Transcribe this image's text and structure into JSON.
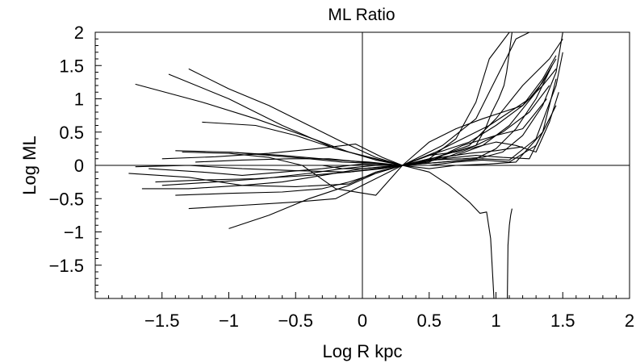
{
  "chart_data": {
    "type": "line",
    "title": "ML Ratio",
    "xlabel": "Log R kpc",
    "ylabel": "Log ML",
    "xlim": [
      -2.0,
      2.0
    ],
    "ylim": [
      -2.0,
      2.0
    ],
    "x_ticks": [
      -1.5,
      -1,
      -0.5,
      0,
      0.5,
      1,
      1.5,
      2
    ],
    "x_tick_labels": [
      "−1.5",
      "−1",
      "−0.5",
      "0",
      "0.5",
      "1",
      "1.5",
      "2"
    ],
    "y_ticks": [
      -1.5,
      -1,
      -0.5,
      0,
      0.5,
      1,
      1.5,
      2
    ],
    "y_tick_labels": [
      "−1.5",
      "−1",
      "−0.5",
      "0",
      "0.5",
      "1",
      "1.5",
      "2"
    ],
    "reference_lines": {
      "x": 0,
      "y": 0
    },
    "grid": false,
    "line_color": "#000000",
    "series": [
      {
        "x": [
          -1.7,
          -1.2,
          -0.8,
          -0.4,
          -0.1,
          0.1,
          0.3,
          0.5,
          0.8,
          1.0,
          1.2,
          1.35,
          1.45
        ],
        "y": [
          1.22,
          0.95,
          0.7,
          0.42,
          0.2,
          0.08,
          0.0,
          0.15,
          0.35,
          0.6,
          0.9,
          1.3,
          1.65
        ]
      },
      {
        "x": [
          -1.45,
          -1.0,
          -0.6,
          -0.2,
          0.1,
          0.3,
          0.5,
          0.7,
          0.85,
          0.95,
          1.1,
          1.25,
          1.4
        ],
        "y": [
          1.37,
          1.0,
          0.6,
          0.25,
          0.1,
          0.0,
          0.1,
          0.4,
          0.95,
          1.6,
          2.0,
          2.0,
          2.0
        ]
      },
      {
        "x": [
          -1.3,
          -1.0,
          -0.7,
          -0.4,
          -0.15,
          0.1,
          0.3,
          0.55,
          0.8,
          1.0,
          1.2,
          1.4,
          1.5
        ],
        "y": [
          1.45,
          1.15,
          0.9,
          0.6,
          0.35,
          0.12,
          0.0,
          0.12,
          0.3,
          0.7,
          1.2,
          1.6,
          1.9
        ]
      },
      {
        "x": [
          -1.6,
          -1.2,
          -0.9,
          -0.6,
          -0.3,
          0.0,
          0.3,
          0.6,
          0.85,
          0.95,
          1.05,
          1.15,
          1.25
        ],
        "y": [
          -0.05,
          -0.1,
          -0.15,
          -0.1,
          -0.05,
          0.02,
          0.0,
          0.3,
          0.7,
          1.1,
          1.5,
          1.9,
          2.0
        ]
      },
      {
        "x": [
          -1.35,
          -1.0,
          -0.7,
          -0.45,
          -0.2,
          0.1,
          0.3,
          0.5,
          0.7,
          0.85,
          0.92,
          0.97,
          1.02,
          1.06,
          1.08,
          1.1,
          1.12
        ],
        "y": [
          0.2,
          0.18,
          0.12,
          0.0,
          -0.35,
          -0.45,
          0.0,
          0.15,
          0.2,
          0.3,
          0.55,
          0.8,
          1.0,
          1.2,
          1.4,
          1.7,
          2.0
        ]
      },
      {
        "x": [
          -1.3,
          -0.9,
          -0.5,
          -0.2,
          0.0,
          0.3,
          0.5,
          0.7,
          0.9,
          1.1,
          1.3,
          1.45
        ],
        "y": [
          -0.65,
          -0.6,
          -0.55,
          -0.5,
          -0.3,
          0.0,
          0.1,
          0.15,
          0.3,
          0.6,
          1.1,
          1.6
        ]
      },
      {
        "x": [
          -1.0,
          -0.7,
          -0.4,
          -0.1,
          0.1,
          0.3,
          0.5,
          0.75,
          0.9,
          1.05,
          1.2,
          1.35,
          1.45,
          1.5
        ],
        "y": [
          -0.95,
          -0.75,
          -0.5,
          -0.3,
          -0.12,
          0.0,
          0.08,
          0.1,
          0.12,
          0.2,
          0.45,
          0.9,
          1.4,
          2.0
        ]
      },
      {
        "x": [
          -1.75,
          -1.3,
          -0.9,
          -0.5,
          -0.1,
          0.1,
          0.3,
          0.6,
          0.85,
          1.05,
          1.25,
          1.4
        ],
        "y": [
          -0.12,
          -0.18,
          -0.3,
          -0.32,
          -0.28,
          -0.1,
          0.0,
          0.1,
          0.15,
          0.12,
          0.1,
          0.7
        ]
      },
      {
        "x": [
          -1.65,
          -1.3,
          -0.9,
          -0.6,
          -0.3,
          0.0,
          0.3,
          0.6,
          0.9,
          1.1,
          1.3,
          1.45,
          1.5
        ],
        "y": [
          -0.35,
          -0.35,
          -0.3,
          -0.25,
          -0.15,
          -0.05,
          0.0,
          0.05,
          0.1,
          0.08,
          0.4,
          1.2,
          1.7
        ]
      },
      {
        "x": [
          -1.7,
          -1.3,
          -0.9,
          -0.5,
          -0.1,
          0.1,
          0.3,
          0.6,
          0.85,
          1.0,
          1.15,
          1.3,
          1.42
        ],
        "y": [
          -0.02,
          0.0,
          -0.05,
          -0.08,
          -0.1,
          -0.05,
          0.0,
          0.05,
          0.1,
          0.25,
          0.55,
          1.0,
          1.5
        ]
      },
      {
        "x": [
          -1.4,
          -1.0,
          -0.6,
          -0.2,
          0.05,
          0.3,
          0.55,
          0.8,
          0.95,
          1.1,
          1.25,
          1.35,
          1.42
        ],
        "y": [
          0.22,
          0.2,
          0.15,
          0.08,
          0.05,
          0.0,
          0.2,
          0.45,
          0.6,
          0.8,
          1.0,
          1.25,
          1.5
        ]
      },
      {
        "x": [
          -1.25,
          -0.9,
          -0.55,
          -0.25,
          0.0,
          0.3,
          0.6,
          0.8,
          1.0,
          1.15,
          1.3,
          1.4,
          1.47
        ],
        "y": [
          0.05,
          0.08,
          0.1,
          0.1,
          0.05,
          0.0,
          0.1,
          0.25,
          0.35,
          0.3,
          0.2,
          0.65,
          1.1
        ]
      },
      {
        "x": [
          -1.5,
          -1.1,
          -0.7,
          -0.35,
          -0.05,
          0.15,
          0.3,
          0.5,
          0.75,
          1.0,
          1.2,
          1.38
        ],
        "y": [
          0.1,
          0.13,
          0.18,
          0.25,
          0.32,
          0.12,
          0.0,
          0.05,
          0.3,
          0.45,
          0.55,
          1.0
        ]
      },
      {
        "x": [
          -1.55,
          -1.2,
          -0.8,
          -0.4,
          -0.1,
          0.15,
          0.3,
          0.5,
          0.7,
          0.95,
          1.15,
          1.35,
          1.45
        ],
        "y": [
          -0.25,
          -0.22,
          -0.2,
          -0.15,
          -0.1,
          -0.05,
          0.0,
          -0.05,
          0.0,
          0.02,
          0.05,
          0.5,
          1.3
        ]
      },
      {
        "x": [
          -1.4,
          -1.0,
          -0.6,
          -0.3,
          -0.1,
          0.1,
          0.3,
          0.5,
          0.7,
          0.9,
          1.1,
          1.3,
          1.45
        ],
        "y": [
          -0.45,
          -0.42,
          -0.4,
          -0.35,
          -0.25,
          -0.12,
          0.0,
          0.0,
          0.05,
          0.08,
          0.05,
          0.3,
          0.9
        ]
      },
      {
        "x": [
          -1.2,
          -0.8,
          -0.5,
          -0.2,
          0.05,
          0.3,
          0.5,
          0.7,
          0.9,
          1.05,
          1.2,
          1.35,
          1.45
        ],
        "y": [
          0.65,
          0.6,
          0.45,
          0.25,
          0.12,
          0.0,
          0.35,
          0.55,
          0.7,
          0.8,
          0.9,
          1.2,
          1.45
        ]
      },
      {
        "x": [
          -1.0,
          -0.7,
          -0.4,
          -0.15,
          0.1,
          0.3,
          0.45,
          0.6,
          0.85,
          1.05,
          1.25,
          1.4
        ],
        "y": [
          0.2,
          0.15,
          0.1,
          0.05,
          0.03,
          0.0,
          0.05,
          0.15,
          0.3,
          0.5,
          0.8,
          1.2
        ]
      },
      {
        "x": [
          -1.5,
          -1.1,
          -0.75,
          -0.4,
          -0.15,
          0.1,
          0.3,
          0.5,
          0.65,
          0.8,
          0.88,
          0.93,
          0.96,
          0.985
        ],
        "y": [
          -0.3,
          -0.25,
          -0.2,
          -0.12,
          -0.05,
          0.0,
          0.0,
          -0.1,
          -0.3,
          -0.55,
          -0.72,
          -0.7,
          -1.1,
          -2.0
        ]
      },
      {
        "x": [
          1.085,
          1.09,
          1.1,
          1.11,
          1.12
        ],
        "y": [
          -2.0,
          -1.2,
          -0.9,
          -0.75,
          -0.65
        ]
      },
      {
        "x": [
          -0.3,
          -0.15,
          0.0,
          0.15,
          0.3,
          0.45,
          0.6,
          0.8,
          1.0,
          1.2
        ],
        "y": [
          0.0,
          -0.05,
          -0.05,
          -0.02,
          0.0,
          0.05,
          0.12,
          0.18,
          0.22,
          0.28
        ]
      }
    ]
  }
}
